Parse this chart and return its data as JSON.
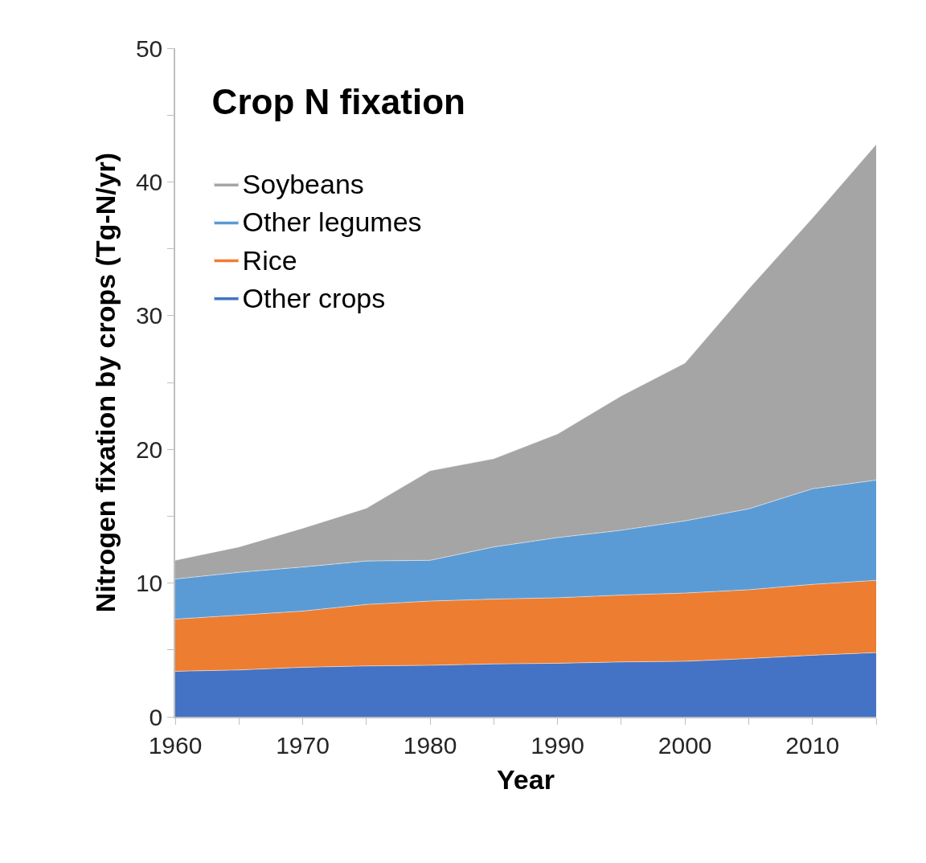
{
  "chart_data": {
    "type": "area",
    "stacked": true,
    "xlabel": "Year",
    "ylabel": "Nitrogen fixation by crops (Tg-N/yr)",
    "legend_title": "Crop N fixation",
    "x": [
      1960,
      1965,
      1970,
      1975,
      1980,
      1985,
      1990,
      1995,
      2000,
      2005,
      2010,
      2015
    ],
    "series": [
      {
        "name": "Other crops",
        "color": "#4472c4",
        "values": [
          3.4,
          3.5,
          3.7,
          3.8,
          3.85,
          3.95,
          4.0,
          4.1,
          4.15,
          4.35,
          4.6,
          4.8
        ]
      },
      {
        "name": "Rice",
        "color": "#ed7d31",
        "values": [
          3.9,
          4.1,
          4.2,
          4.6,
          4.8,
          4.85,
          4.9,
          5.0,
          5.1,
          5.15,
          5.3,
          5.4
        ]
      },
      {
        "name": "Other legumes",
        "color": "#5b9bd5",
        "values": [
          3.0,
          3.2,
          3.3,
          3.25,
          3.05,
          3.9,
          4.5,
          4.85,
          5.4,
          6.05,
          7.15,
          7.5
        ]
      },
      {
        "name": "Soybeans",
        "color": "#a5a5a5",
        "values": [
          1.4,
          1.9,
          2.9,
          3.95,
          6.7,
          6.6,
          7.75,
          10.05,
          11.8,
          16.45,
          20.25,
          25.1
        ]
      }
    ],
    "xlim": [
      1960,
      2015
    ],
    "xticks": [
      1960,
      {
        "value": 1965,
        "label": null
      },
      1970,
      {
        "value": 1975,
        "label": null
      },
      1980,
      {
        "value": 1985,
        "label": null
      },
      1990,
      {
        "value": 1995,
        "label": null
      },
      2000,
      {
        "value": 2005,
        "label": null
      },
      2010,
      {
        "value": 2015,
        "label": null
      }
    ],
    "ylim": [
      0,
      50
    ],
    "yticks": [
      0,
      {
        "value": 5,
        "label": null
      },
      10,
      {
        "value": 15,
        "label": null
      },
      20,
      {
        "value": 25,
        "label": null
      },
      30,
      {
        "value": 35,
        "label": null
      },
      40,
      {
        "value": 45,
        "label": null
      },
      50
    ],
    "legend": "top left"
  }
}
